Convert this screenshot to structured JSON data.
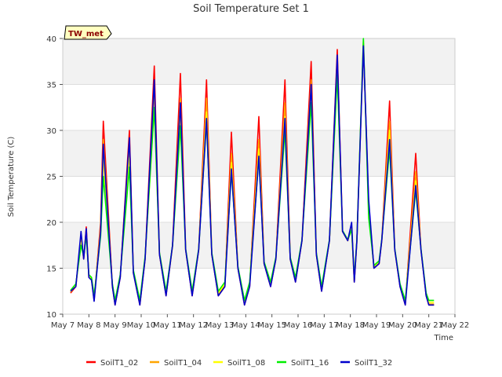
{
  "chart_data": {
    "type": "line",
    "title": "Soil Temperature Set 1",
    "xlabel": "Time",
    "ylabel": "Soil Temperature (C)",
    "badge": "TW_met",
    "ylim": [
      10,
      40
    ],
    "yticks": [
      10,
      15,
      20,
      25,
      30,
      35,
      40
    ],
    "xlim": [
      7,
      22
    ],
    "xticks": [
      {
        "x": 7,
        "label": "May 7"
      },
      {
        "x": 8,
        "label": "May 8"
      },
      {
        "x": 9,
        "label": "May 9"
      },
      {
        "x": 10,
        "label": "May 10"
      },
      {
        "x": 11,
        "label": "May 11"
      },
      {
        "x": 12,
        "label": "May 12"
      },
      {
        "x": 13,
        "label": "May 13"
      },
      {
        "x": 14,
        "label": "May 14"
      },
      {
        "x": 15,
        "label": "May 15"
      },
      {
        "x": 16,
        "label": "May 16"
      },
      {
        "x": 17,
        "label": "May 17"
      },
      {
        "x": 18,
        "label": "May 18"
      },
      {
        "x": 19,
        "label": "May 19"
      },
      {
        "x": 20,
        "label": "May 20"
      },
      {
        "x": 21,
        "label": "May 21"
      },
      {
        "x": 22,
        "label": "May 22"
      }
    ],
    "grid": true,
    "legend_position": "bottom",
    "series": [
      {
        "name": "SoilT1_02",
        "color": "#ff0000",
        "x": [
          7.3,
          7.5,
          7.7,
          7.8,
          7.9,
          8.0,
          8.1,
          8.2,
          8.45,
          8.55,
          8.9,
          9.0,
          9.2,
          9.55,
          9.7,
          9.95,
          10.15,
          10.5,
          10.7,
          10.95,
          11.2,
          11.5,
          11.7,
          11.95,
          12.2,
          12.5,
          12.7,
          12.95,
          13.2,
          13.45,
          13.7,
          13.95,
          14.15,
          14.5,
          14.7,
          14.95,
          15.15,
          15.5,
          15.7,
          15.9,
          16.15,
          16.5,
          16.7,
          16.9,
          17.2,
          17.5,
          17.7,
          17.9,
          18.05,
          18.15,
          18.25,
          18.5,
          18.7,
          18.9,
          19.1,
          19.2,
          19.5,
          19.7,
          19.9,
          20.1,
          20.5,
          20.7,
          20.9,
          21.0,
          21.2
        ],
        "y": [
          12.3,
          13.0,
          18.5,
          16.0,
          19.5,
          14.0,
          13.8,
          11.5,
          20.0,
          31.0,
          13.0,
          11.0,
          14.0,
          30.0,
          14.5,
          11.0,
          16.0,
          37.0,
          16.5,
          12.0,
          17.5,
          36.2,
          17.0,
          12.0,
          17.0,
          35.5,
          16.5,
          12.0,
          13.0,
          29.8,
          15.0,
          11.0,
          13.0,
          31.5,
          15.5,
          13.0,
          16.0,
          35.5,
          16.0,
          13.5,
          18.0,
          37.5,
          16.5,
          12.5,
          18.0,
          38.8,
          19.0,
          18.0,
          19.5,
          13.5,
          18.0,
          39.5,
          22.0,
          15.0,
          15.5,
          18.0,
          33.2,
          17.0,
          13.0,
          11.0,
          27.5,
          17.0,
          12.0,
          11.0,
          11.0
        ]
      },
      {
        "name": "SoilT1_04",
        "color": "#ffa500",
        "x": [
          7.3,
          7.5,
          7.7,
          7.8,
          7.9,
          8.0,
          8.1,
          8.2,
          8.45,
          8.55,
          8.9,
          9.0,
          9.2,
          9.55,
          9.7,
          9.95,
          10.15,
          10.5,
          10.7,
          10.95,
          11.2,
          11.5,
          11.7,
          11.95,
          12.2,
          12.5,
          12.7,
          12.95,
          13.2,
          13.45,
          13.7,
          13.95,
          14.15,
          14.5,
          14.7,
          14.95,
          15.15,
          15.5,
          15.7,
          15.9,
          16.15,
          16.5,
          16.7,
          16.9,
          17.2,
          17.5,
          17.7,
          17.9,
          18.05,
          18.15,
          18.25,
          18.5,
          18.7,
          18.9,
          19.1,
          19.2,
          19.5,
          19.7,
          19.9,
          20.1,
          20.5,
          20.7,
          20.9,
          21.0,
          21.2
        ],
        "y": [
          12.4,
          13.1,
          18.2,
          16.1,
          19.2,
          14.1,
          13.8,
          11.6,
          19.5,
          29.0,
          13.1,
          11.1,
          14.1,
          28.5,
          14.6,
          11.1,
          16.1,
          34.5,
          16.5,
          12.1,
          17.4,
          33.5,
          17.0,
          12.1,
          17.0,
          33.5,
          16.5,
          12.1,
          13.1,
          27.5,
          15.0,
          11.1,
          13.1,
          29.0,
          15.5,
          13.1,
          16.0,
          33.0,
          16.0,
          13.6,
          18.0,
          35.5,
          16.5,
          12.6,
          18.0,
          37.5,
          19.0,
          18.0,
          19.4,
          13.6,
          18.0,
          39.3,
          21.5,
          15.1,
          15.6,
          18.0,
          31.0,
          17.0,
          13.1,
          11.1,
          25.5,
          17.0,
          12.1,
          11.1,
          11.1
        ]
      },
      {
        "name": "SoilT1_08",
        "color": "#ffff00",
        "x": [
          7.3,
          7.5,
          7.7,
          7.8,
          7.9,
          8.0,
          8.1,
          8.2,
          8.45,
          8.55,
          8.9,
          9.0,
          9.2,
          9.55,
          9.7,
          9.95,
          10.15,
          10.5,
          10.7,
          10.95,
          11.2,
          11.5,
          11.7,
          11.95,
          12.2,
          12.5,
          12.7,
          12.95,
          13.2,
          13.45,
          13.7,
          13.95,
          14.15,
          14.5,
          14.7,
          14.95,
          15.15,
          15.5,
          15.7,
          15.9,
          16.15,
          16.5,
          16.7,
          16.9,
          17.2,
          17.5,
          17.7,
          17.9,
          18.05,
          18.15,
          18.25,
          18.5,
          18.7,
          18.9,
          19.1,
          19.2,
          19.5,
          19.7,
          19.9,
          20.1,
          20.5,
          20.7,
          20.9,
          21.0,
          21.2
        ],
        "y": [
          12.5,
          13.2,
          17.8,
          16.2,
          18.8,
          14.2,
          13.9,
          11.8,
          19.0,
          27.0,
          13.2,
          11.3,
          14.2,
          27.0,
          14.7,
          11.3,
          16.2,
          32.5,
          16.6,
          12.3,
          17.4,
          31.5,
          17.0,
          12.3,
          17.0,
          32.0,
          16.6,
          12.3,
          13.3,
          26.5,
          15.1,
          11.3,
          13.3,
          28.0,
          15.6,
          13.3,
          16.1,
          31.5,
          16.1,
          13.8,
          18.0,
          34.5,
          16.6,
          12.8,
          18.0,
          36.5,
          19.0,
          18.0,
          19.3,
          13.8,
          18.0,
          39.8,
          21.0,
          15.2,
          15.7,
          18.0,
          30.0,
          17.0,
          13.2,
          11.3,
          24.5,
          17.0,
          12.2,
          11.3,
          11.3
        ]
      },
      {
        "name": "SoilT1_16",
        "color": "#00ee00",
        "x": [
          7.3,
          7.5,
          7.7,
          7.8,
          7.9,
          8.0,
          8.1,
          8.2,
          8.45,
          8.55,
          8.9,
          9.0,
          9.2,
          9.55,
          9.7,
          9.95,
          10.15,
          10.5,
          10.7,
          10.95,
          11.2,
          11.5,
          11.7,
          11.95,
          12.2,
          12.5,
          12.7,
          12.95,
          13.2,
          13.45,
          13.7,
          13.95,
          14.15,
          14.5,
          14.7,
          14.95,
          15.15,
          15.5,
          15.7,
          15.9,
          16.15,
          16.5,
          16.7,
          16.9,
          17.2,
          17.5,
          17.7,
          17.9,
          18.05,
          18.15,
          18.25,
          18.5,
          18.7,
          18.9,
          19.1,
          19.2,
          19.5,
          19.7,
          19.9,
          20.1,
          20.5,
          20.7,
          20.9,
          21.0,
          21.2
        ],
        "y": [
          12.6,
          13.3,
          17.5,
          16.3,
          18.5,
          14.3,
          14.0,
          12.0,
          18.5,
          25.0,
          13.3,
          11.5,
          14.3,
          26.0,
          14.8,
          11.5,
          16.3,
          32.5,
          16.7,
          12.5,
          17.5,
          30.5,
          17.1,
          12.5,
          17.1,
          31.0,
          16.7,
          12.5,
          13.5,
          25.5,
          15.2,
          11.5,
          13.5,
          27.0,
          15.7,
          13.5,
          16.2,
          30.0,
          16.2,
          14.0,
          18.1,
          33.0,
          16.7,
          13.0,
          18.1,
          36.0,
          19.1,
          18.1,
          19.2,
          14.0,
          18.1,
          40.0,
          20.5,
          15.3,
          15.8,
          18.1,
          28.0,
          17.1,
          13.3,
          11.5,
          23.5,
          17.1,
          12.3,
          11.5,
          11.5
        ]
      },
      {
        "name": "SoilT1_32",
        "color": "#0000cc",
        "x": [
          7.3,
          7.5,
          7.7,
          7.8,
          7.9,
          8.0,
          8.1,
          8.2,
          8.45,
          8.55,
          8.9,
          9.0,
          9.2,
          9.55,
          9.7,
          9.95,
          10.15,
          10.5,
          10.7,
          10.95,
          11.2,
          11.5,
          11.7,
          11.95,
          12.2,
          12.5,
          12.7,
          12.95,
          13.2,
          13.45,
          13.7,
          13.95,
          14.15,
          14.5,
          14.7,
          14.95,
          15.15,
          15.5,
          15.7,
          15.9,
          16.15,
          16.5,
          16.7,
          16.9,
          17.2,
          17.5,
          17.7,
          17.9,
          18.05,
          18.15,
          18.25,
          18.5,
          18.7,
          18.9,
          19.1,
          19.2,
          19.5,
          19.7,
          19.9,
          20.1,
          20.5,
          20.7,
          20.9,
          21.0,
          21.2
        ],
        "y": [
          12.5,
          13.0,
          19.0,
          16.0,
          19.3,
          14.0,
          13.7,
          11.4,
          19.0,
          28.5,
          13.0,
          11.0,
          14.0,
          29.2,
          14.5,
          11.0,
          16.0,
          35.5,
          16.5,
          12.0,
          17.5,
          33.0,
          17.0,
          12.0,
          17.0,
          31.3,
          16.5,
          12.0,
          13.0,
          25.8,
          15.0,
          11.0,
          13.0,
          27.2,
          15.5,
          13.0,
          16.0,
          31.3,
          16.0,
          13.5,
          18.0,
          35.0,
          16.5,
          12.5,
          18.0,
          38.2,
          19.0,
          18.0,
          20.0,
          13.5,
          18.0,
          39.2,
          22.5,
          15.0,
          15.5,
          18.0,
          29.0,
          17.0,
          13.0,
          11.0,
          24.0,
          17.0,
          12.0,
          11.0,
          11.0
        ]
      }
    ]
  }
}
